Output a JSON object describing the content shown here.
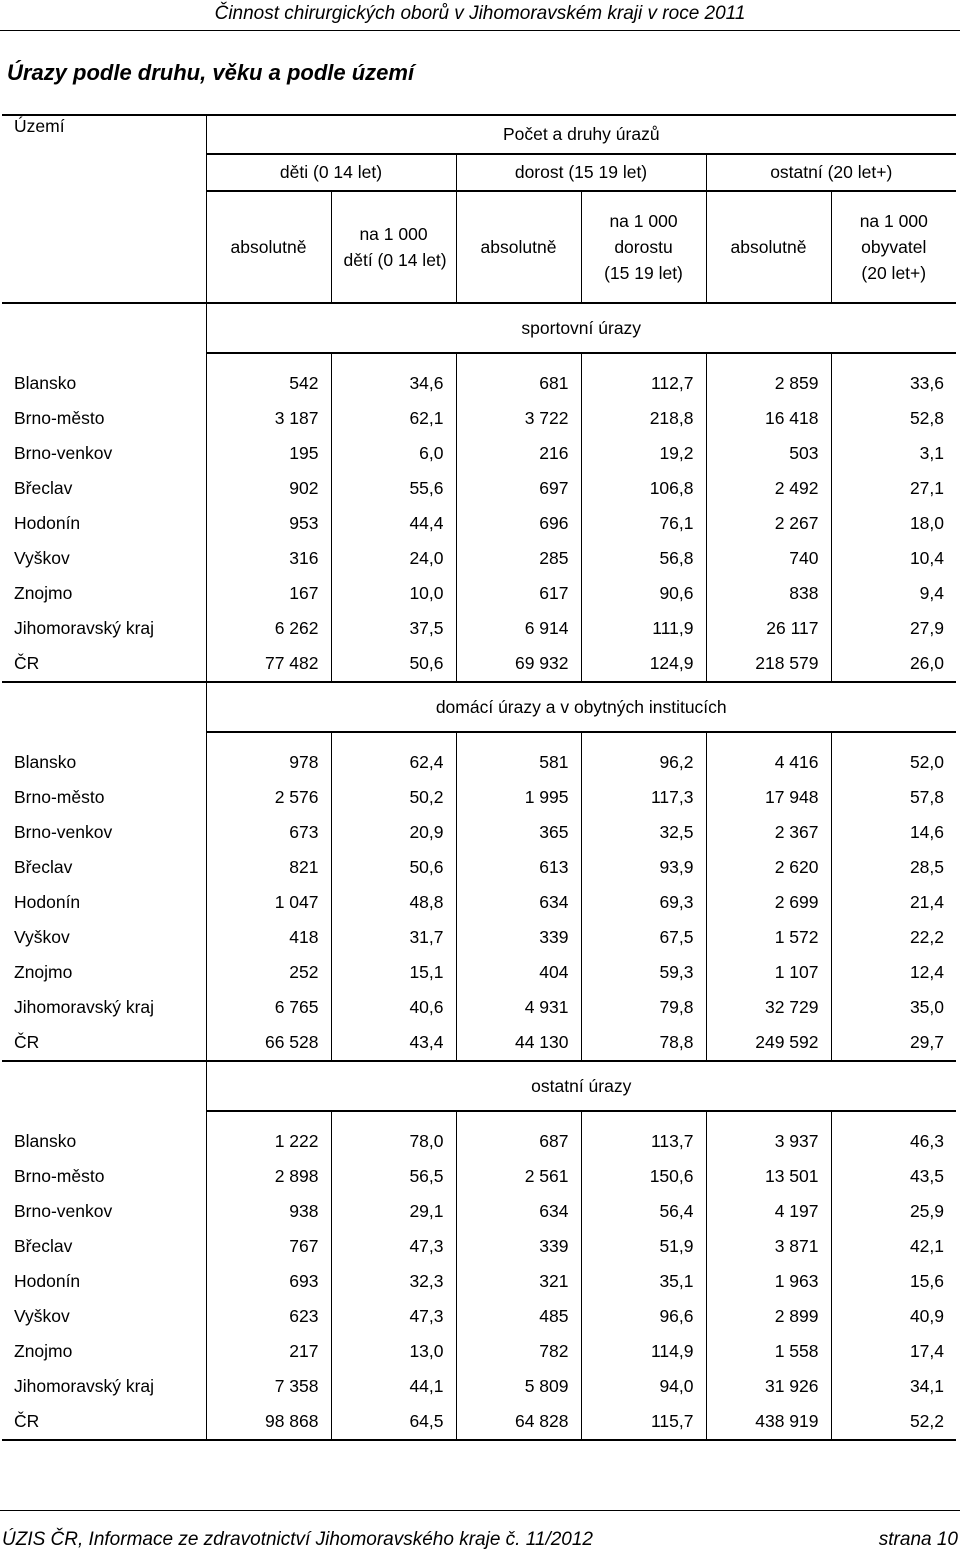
{
  "running_header": "Činnost chirurgických oborů v Jihomoravském kraji v roce 2011",
  "title": "Úrazy podle druhu, věku a podle území",
  "table": {
    "territory_header": "Území",
    "top_header": "Počet a druhy úrazů",
    "age_groups": [
      "děti (0 14 let)",
      "dorost (15 19 let)",
      "ostatní (20 let+)"
    ],
    "sub_headers": [
      [
        "absolutně"
      ],
      [
        "na 1 000",
        "dětí (0 14 let)"
      ],
      [
        "absolutně"
      ],
      [
        "na 1 000",
        "dorostu",
        "(15 19 let)"
      ],
      [
        "absolutně"
      ],
      [
        "na 1 000",
        "obyvatel",
        "(20 let+)"
      ]
    ],
    "sections": [
      {
        "name": "sportovní úrazy",
        "rows": [
          [
            "Blansko",
            "542",
            "34,6",
            "681",
            "112,7",
            "2 859",
            "33,6"
          ],
          [
            "Brno-město",
            "3 187",
            "62,1",
            "3 722",
            "218,8",
            "16 418",
            "52,8"
          ],
          [
            "Brno-venkov",
            "195",
            "6,0",
            "216",
            "19,2",
            "503",
            "3,1"
          ],
          [
            "Břeclav",
            "902",
            "55,6",
            "697",
            "106,8",
            "2 492",
            "27,1"
          ],
          [
            "Hodonín",
            "953",
            "44,4",
            "696",
            "76,1",
            "2 267",
            "18,0"
          ],
          [
            "Vyškov",
            "316",
            "24,0",
            "285",
            "56,8",
            "740",
            "10,4"
          ],
          [
            "Znojmo",
            "167",
            "10,0",
            "617",
            "90,6",
            "838",
            "9,4"
          ],
          [
            "Jihomoravský kraj",
            "6 262",
            "37,5",
            "6 914",
            "111,9",
            "26 117",
            "27,9"
          ],
          [
            "ČR",
            "77 482",
            "50,6",
            "69 932",
            "124,9",
            "218 579",
            "26,0"
          ]
        ]
      },
      {
        "name": "domácí úrazy a v obytných institucích",
        "rows": [
          [
            "Blansko",
            "978",
            "62,4",
            "581",
            "96,2",
            "4 416",
            "52,0"
          ],
          [
            "Brno-město",
            "2 576",
            "50,2",
            "1 995",
            "117,3",
            "17 948",
            "57,8"
          ],
          [
            "Brno-venkov",
            "673",
            "20,9",
            "365",
            "32,5",
            "2 367",
            "14,6"
          ],
          [
            "Břeclav",
            "821",
            "50,6",
            "613",
            "93,9",
            "2 620",
            "28,5"
          ],
          [
            "Hodonín",
            "1 047",
            "48,8",
            "634",
            "69,3",
            "2 699",
            "21,4"
          ],
          [
            "Vyškov",
            "418",
            "31,7",
            "339",
            "67,5",
            "1 572",
            "22,2"
          ],
          [
            "Znojmo",
            "252",
            "15,1",
            "404",
            "59,3",
            "1 107",
            "12,4"
          ],
          [
            "Jihomoravský kraj",
            "6 765",
            "40,6",
            "4 931",
            "79,8",
            "32 729",
            "35,0"
          ],
          [
            "ČR",
            "66 528",
            "43,4",
            "44 130",
            "78,8",
            "249 592",
            "29,7"
          ]
        ]
      },
      {
        "name": "ostatní úrazy",
        "rows": [
          [
            "Blansko",
            "1 222",
            "78,0",
            "687",
            "113,7",
            "3 937",
            "46,3"
          ],
          [
            "Brno-město",
            "2 898",
            "56,5",
            "2 561",
            "150,6",
            "13 501",
            "43,5"
          ],
          [
            "Brno-venkov",
            "938",
            "29,1",
            "634",
            "56,4",
            "4 197",
            "25,9"
          ],
          [
            "Břeclav",
            "767",
            "47,3",
            "339",
            "51,9",
            "3 871",
            "42,1"
          ],
          [
            "Hodonín",
            "693",
            "32,3",
            "321",
            "35,1",
            "1 963",
            "15,6"
          ],
          [
            "Vyškov",
            "623",
            "47,3",
            "485",
            "96,6",
            "2 899",
            "40,9"
          ],
          [
            "Znojmo",
            "217",
            "13,0",
            "782",
            "114,9",
            "1 558",
            "17,4"
          ],
          [
            "Jihomoravský kraj",
            "7 358",
            "44,1",
            "5 809",
            "94,0",
            "31 926",
            "34,1"
          ],
          [
            "ČR",
            "98 868",
            "64,5",
            "64 828",
            "115,7",
            "438 919",
            "52,2"
          ]
        ]
      }
    ]
  },
  "footer": {
    "source": "ÚZIS ČR, Informace ze zdravotnictví Jihomoravského kraje č. 11/2012",
    "page": "strana 10"
  }
}
